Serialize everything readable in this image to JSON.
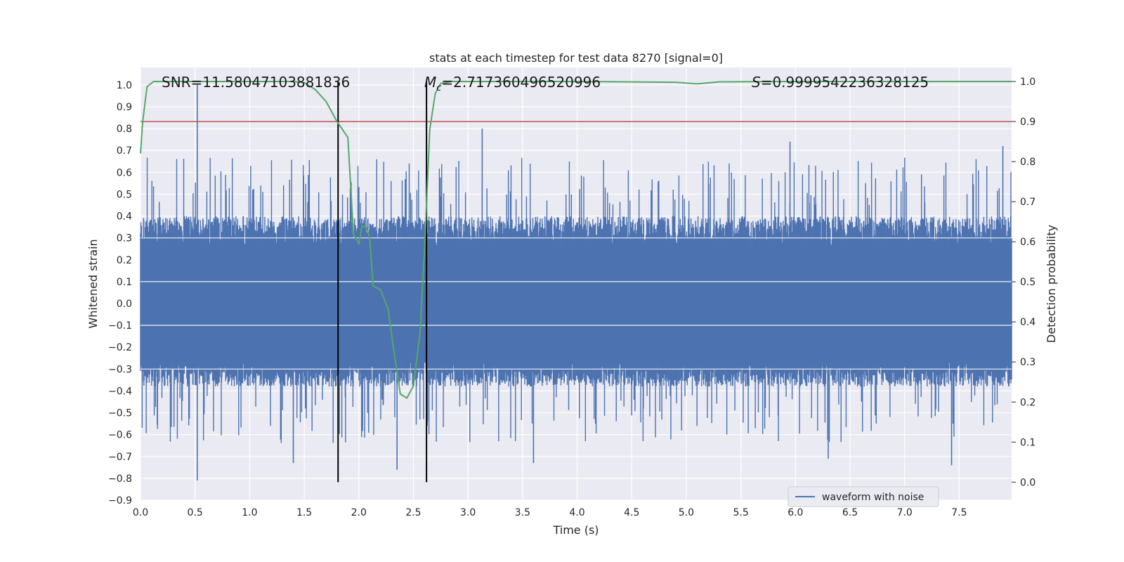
{
  "chart_data": {
    "type": "line",
    "title": "stats at each timestep for test data 8270 [signal=0]",
    "xlabel": "Time (s)",
    "ylabel": "Whitened strain",
    "y2label": "Detection probability",
    "xlim": [
      0.0,
      7.98
    ],
    "ylim": [
      -0.9,
      1.08
    ],
    "y2lim": [
      -0.045,
      1.035
    ],
    "xticks": [
      "0.0",
      "0.5",
      "1.0",
      "1.5",
      "2.0",
      "2.5",
      "3.0",
      "3.5",
      "4.0",
      "4.5",
      "5.0",
      "5.5",
      "6.0",
      "6.5",
      "7.0",
      "7.5"
    ],
    "yticks": [
      "1.0",
      "0.9",
      "0.8",
      "0.7",
      "0.6",
      "0.5",
      "0.4",
      "0.3",
      "0.2",
      "0.1",
      "0.0",
      "−0.1",
      "−0.2",
      "−0.3",
      "−0.4",
      "−0.5",
      "−0.6",
      "−0.7",
      "−0.8",
      "−0.9"
    ],
    "y2ticks": [
      "1.0",
      "0.9",
      "0.8",
      "0.7",
      "0.6",
      "0.5",
      "0.4",
      "0.3",
      "0.2",
      "0.1",
      "0.0"
    ],
    "annotations": {
      "snr": "SNR=11.58047103881836",
      "mc_symbol": "M",
      "mc_sub": "c",
      "mc_value": "=2.717360496520996",
      "s_symbol": "S",
      "s_value": "=0.9999542236328125"
    },
    "legend": {
      "entries": [
        "waveform with noise"
      ],
      "location": "lower-right"
    },
    "vlines_x": [
      1.81,
      2.62
    ],
    "threshold_y2": 0.9,
    "colors": {
      "waveform": "#4c72b0",
      "probability": "#55a868",
      "threshold": "#c44e52",
      "vline": "#000000",
      "background": "#eaeaf2",
      "grid": "#ffffff"
    },
    "waveform": {
      "name": "waveform with noise",
      "description_series": "whitened strain noise, approx. uniform in [-0.35, 0.45] with spikes",
      "peaks": [
        {
          "x": 0.52,
          "y": 1.0
        },
        {
          "x": 0.52,
          "y": -0.81
        },
        {
          "x": 3.13,
          "y": 0.8
        },
        {
          "x": 2.35,
          "y": -0.76
        },
        {
          "x": 7.43,
          "y": -0.74
        },
        {
          "x": 1.4,
          "y": -0.73
        },
        {
          "x": 5.95,
          "y": 0.74
        },
        {
          "x": 7.9,
          "y": 0.72
        },
        {
          "x": 3.6,
          "y": -0.73
        },
        {
          "x": 6.3,
          "y": -0.71
        }
      ]
    },
    "series": [
      {
        "name": "detection probability",
        "axis": "y2",
        "x": [
          0.0,
          0.02,
          0.06,
          0.12,
          0.2,
          0.5,
          1.0,
          1.4,
          1.5,
          1.6,
          1.7,
          1.8,
          1.9,
          1.95,
          2.0,
          2.03,
          2.07,
          2.1,
          2.13,
          2.2,
          2.27,
          2.32,
          2.38,
          2.44,
          2.5,
          2.56,
          2.6,
          2.65,
          2.7,
          2.75,
          2.85,
          3.0,
          4.0,
          4.9,
          5.1,
          5.3,
          6.0,
          7.0,
          7.98
        ],
        "values": [
          0.82,
          0.9,
          0.987,
          1.0,
          1.0,
          1.0,
          1.0,
          1.0,
          0.997,
          0.98,
          0.95,
          0.9,
          0.86,
          0.62,
          0.595,
          0.64,
          0.635,
          0.61,
          0.49,
          0.48,
          0.43,
          0.33,
          0.22,
          0.21,
          0.24,
          0.37,
          0.57,
          0.88,
          0.97,
          0.995,
          1.0,
          1.0,
          1.0,
          0.998,
          0.994,
          0.999,
          1.0,
          1.0,
          1.0
        ]
      }
    ]
  }
}
